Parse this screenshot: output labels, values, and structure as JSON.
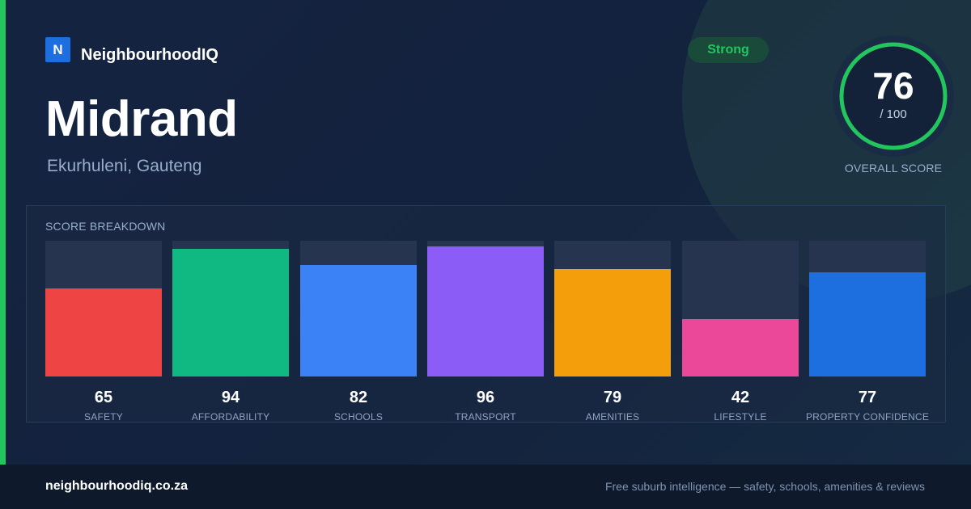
{
  "brand": {
    "logo_letter": "N",
    "name": "NeighbourhoodIQ",
    "accent_color": "#22c55e",
    "logo_color": "#1d6fe0"
  },
  "suburb": {
    "name": "Midrand",
    "location": "Ekurhuleni, Gauteng"
  },
  "rating_badge": {
    "label": "Strong",
    "color": "#22c55e"
  },
  "overall": {
    "score": "76",
    "denominator": "/ 100",
    "label": "OVERALL SCORE",
    "fraction": 0.76
  },
  "breakdown": {
    "title": "SCORE BREAKDOWN",
    "max": 100,
    "items": [
      {
        "label": "SAFETY",
        "value": 65,
        "value_text": "65",
        "color": "#ef4444"
      },
      {
        "label": "AFFORDABILITY",
        "value": 94,
        "value_text": "94",
        "color": "#10b981"
      },
      {
        "label": "SCHOOLS",
        "value": 82,
        "value_text": "82",
        "color": "#3b82f6"
      },
      {
        "label": "TRANSPORT",
        "value": 96,
        "value_text": "96",
        "color": "#8b5cf6"
      },
      {
        "label": "AMENITIES",
        "value": 79,
        "value_text": "79",
        "color": "#f59e0b"
      },
      {
        "label": "LIFESTYLE",
        "value": 42,
        "value_text": "42",
        "color": "#ec4899"
      },
      {
        "label": "PROPERTY CONFIDENCE",
        "value": 77,
        "value_text": "77",
        "color": "#1d6fe0"
      }
    ]
  },
  "footer": {
    "url": "neighbourhoodiq.co.za",
    "tagline": "Free suburb intelligence — safety, schools, amenities & reviews"
  }
}
